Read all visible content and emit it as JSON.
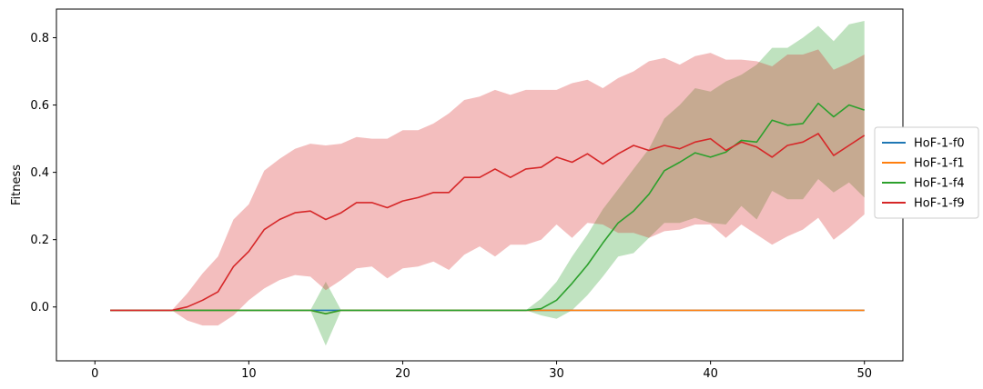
{
  "chart_data": {
    "type": "line",
    "title": "",
    "xlabel": "",
    "ylabel": "Fitness",
    "xlim": [
      -2.5,
      52.5
    ],
    "ylim": [
      -0.16,
      0.885
    ],
    "xticks": [
      0,
      10,
      20,
      30,
      40,
      50
    ],
    "yticks": [
      0.0,
      0.2,
      0.4,
      0.6,
      0.8
    ],
    "yticklabels": [
      "0.0",
      "0.2",
      "0.4",
      "0.6",
      "0.8"
    ],
    "grid": false,
    "legend_position": "right, outside plot",
    "band_opacity": 0.3,
    "x": [
      1,
      2,
      3,
      4,
      5,
      6,
      7,
      8,
      9,
      10,
      11,
      12,
      13,
      14,
      15,
      16,
      17,
      18,
      19,
      20,
      21,
      22,
      23,
      24,
      25,
      26,
      27,
      28,
      29,
      30,
      31,
      32,
      33,
      34,
      35,
      36,
      37,
      38,
      39,
      40,
      41,
      42,
      43,
      44,
      45,
      46,
      47,
      48,
      49,
      50
    ],
    "series": [
      {
        "name": "HoF-1-f0",
        "color": "#1f77b4",
        "values": [
          -0.01,
          -0.01,
          -0.01,
          -0.01,
          -0.01,
          -0.01,
          -0.01,
          -0.01,
          -0.01,
          -0.01,
          -0.01,
          -0.01,
          -0.01,
          -0.01,
          -0.01,
          -0.01,
          -0.01,
          -0.01,
          -0.01,
          -0.01,
          -0.01,
          -0.01,
          -0.01,
          -0.01,
          -0.01,
          -0.01,
          -0.01,
          -0.01,
          -0.01,
          -0.01,
          -0.01,
          -0.01,
          -0.01,
          -0.01,
          -0.01,
          -0.01,
          -0.01,
          -0.01,
          -0.01,
          -0.01,
          -0.01,
          -0.01,
          -0.01,
          -0.01,
          -0.01,
          -0.01,
          -0.01,
          -0.01,
          -0.01,
          -0.01
        ]
      },
      {
        "name": "HoF-1-f1",
        "color": "#ff7f0e",
        "values": [
          -0.01,
          -0.01,
          -0.01,
          -0.01,
          -0.01,
          -0.01,
          -0.01,
          -0.01,
          -0.01,
          -0.01,
          -0.01,
          -0.01,
          -0.01,
          -0.01,
          -0.02,
          -0.01,
          -0.01,
          -0.01,
          -0.01,
          -0.01,
          -0.01,
          -0.01,
          -0.01,
          -0.01,
          -0.01,
          -0.01,
          -0.01,
          -0.01,
          -0.01,
          -0.01,
          -0.01,
          -0.01,
          -0.01,
          -0.01,
          -0.01,
          -0.01,
          -0.01,
          -0.01,
          -0.01,
          -0.01,
          -0.01,
          -0.01,
          -0.01,
          -0.01,
          -0.01,
          -0.01,
          -0.01,
          -0.01,
          -0.01,
          -0.01
        ]
      },
      {
        "name": "HoF-1-f4",
        "color": "#2ca02c",
        "values": [
          -0.01,
          -0.01,
          -0.01,
          -0.01,
          -0.01,
          -0.01,
          -0.01,
          -0.01,
          -0.01,
          -0.01,
          -0.01,
          -0.01,
          -0.01,
          -0.01,
          -0.02,
          -0.01,
          -0.01,
          -0.01,
          -0.01,
          -0.01,
          -0.01,
          -0.01,
          -0.01,
          -0.01,
          -0.01,
          -0.01,
          -0.01,
          -0.01,
          -0.005,
          0.02,
          0.07,
          0.125,
          0.19,
          0.25,
          0.285,
          0.335,
          0.405,
          0.43,
          0.458,
          0.445,
          0.46,
          0.495,
          0.49,
          0.555,
          0.54,
          0.545,
          0.605,
          0.565,
          0.6,
          0.585
        ],
        "lower": [
          -0.01,
          -0.01,
          -0.01,
          -0.01,
          -0.01,
          -0.01,
          -0.01,
          -0.01,
          -0.01,
          -0.01,
          -0.01,
          -0.01,
          -0.01,
          -0.01,
          -0.115,
          -0.01,
          -0.01,
          -0.01,
          -0.01,
          -0.01,
          -0.01,
          -0.01,
          -0.01,
          -0.01,
          -0.01,
          -0.01,
          -0.01,
          -0.01,
          -0.025,
          -0.035,
          -0.01,
          0.035,
          0.09,
          0.15,
          0.16,
          0.205,
          0.25,
          0.25,
          0.265,
          0.25,
          0.245,
          0.3,
          0.26,
          0.345,
          0.32,
          0.32,
          0.38,
          0.34,
          0.37,
          0.325
        ],
        "upper": [
          -0.01,
          -0.01,
          -0.01,
          -0.01,
          -0.01,
          -0.01,
          -0.01,
          -0.01,
          -0.01,
          -0.01,
          -0.01,
          -0.01,
          -0.01,
          -0.01,
          0.075,
          -0.01,
          -0.01,
          -0.01,
          -0.01,
          -0.01,
          -0.01,
          -0.01,
          -0.01,
          -0.01,
          -0.01,
          -0.01,
          -0.01,
          -0.01,
          0.025,
          0.075,
          0.15,
          0.215,
          0.29,
          0.35,
          0.41,
          0.47,
          0.56,
          0.6,
          0.65,
          0.64,
          0.67,
          0.69,
          0.72,
          0.77,
          0.77,
          0.8,
          0.835,
          0.79,
          0.84,
          0.85
        ]
      },
      {
        "name": "HoF-1-f9",
        "color": "#d62728",
        "values": [
          -0.01,
          -0.01,
          -0.01,
          -0.01,
          -0.01,
          0.0,
          0.02,
          0.045,
          0.12,
          0.165,
          0.23,
          0.26,
          0.28,
          0.285,
          0.26,
          0.28,
          0.31,
          0.31,
          0.295,
          0.315,
          0.325,
          0.34,
          0.34,
          0.385,
          0.385,
          0.41,
          0.385,
          0.41,
          0.415,
          0.445,
          0.43,
          0.455,
          0.425,
          0.455,
          0.48,
          0.465,
          0.48,
          0.47,
          0.49,
          0.5,
          0.465,
          0.49,
          0.475,
          0.445,
          0.48,
          0.49,
          0.515,
          0.45,
          0.48,
          0.51
        ],
        "lower": [
          -0.01,
          -0.01,
          -0.01,
          -0.01,
          -0.01,
          -0.04,
          -0.055,
          -0.055,
          -0.025,
          0.02,
          0.055,
          0.08,
          0.095,
          0.09,
          0.05,
          0.08,
          0.115,
          0.12,
          0.085,
          0.115,
          0.12,
          0.135,
          0.11,
          0.155,
          0.18,
          0.15,
          0.185,
          0.185,
          0.2,
          0.245,
          0.205,
          0.25,
          0.245,
          0.22,
          0.22,
          0.205,
          0.225,
          0.23,
          0.245,
          0.245,
          0.205,
          0.245,
          0.215,
          0.185,
          0.21,
          0.23,
          0.265,
          0.2,
          0.235,
          0.275
        ],
        "upper": [
          -0.01,
          -0.01,
          -0.01,
          -0.01,
          -0.01,
          0.04,
          0.1,
          0.15,
          0.26,
          0.305,
          0.405,
          0.44,
          0.47,
          0.485,
          0.48,
          0.485,
          0.505,
          0.5,
          0.5,
          0.525,
          0.525,
          0.545,
          0.575,
          0.615,
          0.625,
          0.645,
          0.63,
          0.645,
          0.645,
          0.645,
          0.665,
          0.675,
          0.65,
          0.68,
          0.7,
          0.73,
          0.74,
          0.72,
          0.745,
          0.755,
          0.735,
          0.735,
          0.73,
          0.715,
          0.75,
          0.75,
          0.765,
          0.705,
          0.725,
          0.75
        ]
      }
    ]
  }
}
